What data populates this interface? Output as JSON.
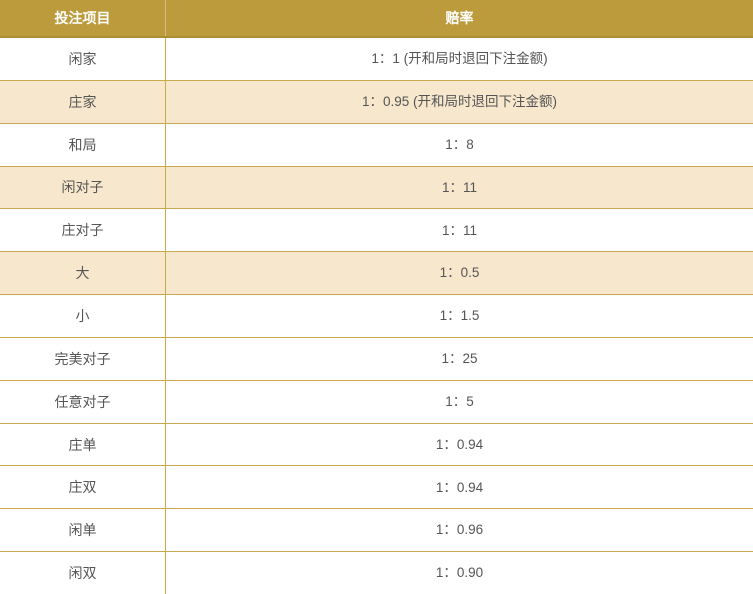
{
  "table": {
    "headers": {
      "item": "投注项目",
      "odds": "赔率"
    },
    "rows": [
      {
        "item": "闲家",
        "odds": "1：1 (开和局时退回下注金额)",
        "shaded": false
      },
      {
        "item": "庄家",
        "odds": "1：0.95 (开和局时退回下注金额)",
        "shaded": true
      },
      {
        "item": "和局",
        "odds": "1：8",
        "shaded": false
      },
      {
        "item": "闲对子",
        "odds": "1：11",
        "shaded": true
      },
      {
        "item": "庄对子",
        "odds": "1：11",
        "shaded": false
      },
      {
        "item": "大",
        "odds": "1：0.5",
        "shaded": true
      },
      {
        "item": "小",
        "odds": "1：1.5",
        "shaded": false
      },
      {
        "item": "完美对子",
        "odds": "1：25",
        "shaded": false
      },
      {
        "item": "任意对子",
        "odds": "1：5",
        "shaded": false
      },
      {
        "item": "庄单",
        "odds": "1：0.94",
        "shaded": false
      },
      {
        "item": "庄双",
        "odds": "1：0.94",
        "shaded": false
      },
      {
        "item": "闲单",
        "odds": "1：0.96",
        "shaded": false
      },
      {
        "item": "闲双",
        "odds": "1：0.90",
        "shaded": false
      }
    ],
    "colors": {
      "header_bg": "#BC9B3C",
      "header_border": "#A98E33",
      "header_text": "#FFFFFF",
      "row_shaded_bg": "#F6E7CD",
      "border": "#C9A94D",
      "text": "#555555"
    }
  }
}
